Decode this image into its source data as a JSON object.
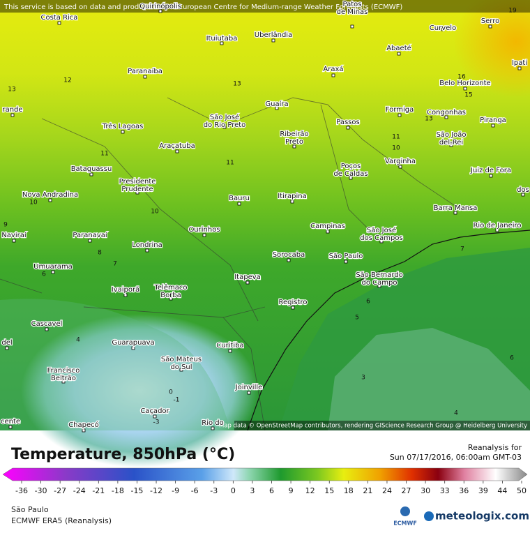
{
  "header": {
    "notice": "This service is based on data and products of the European Centre for Medium-range Weather Forecasts (ECMWF)"
  },
  "map": {
    "cities": [
      [
        "Costa Rica"
      ],
      [
        "Quirinópolis"
      ],
      [
        "Patos",
        "de Minas"
      ],
      [
        "Curvelo"
      ],
      [
        "Serro"
      ],
      [
        "Ituiutaba"
      ],
      [
        "Uberlândia"
      ],
      [
        "Abaeté"
      ],
      [
        "Ipati"
      ],
      [
        "Paranaíba"
      ],
      [
        "Araxá"
      ],
      [
        "Belo Horizonte"
      ],
      [
        "Guaíra"
      ],
      [
        "Formiga"
      ],
      [
        "Congonhas"
      ],
      [
        "Piranga"
      ],
      [
        "rande"
      ],
      [
        "Três Lagoas"
      ],
      [
        "São José",
        "do Rio Preto"
      ],
      [
        "Ribeirão",
        "Preto"
      ],
      [
        "Passos"
      ],
      [
        "São João",
        "del-Rei"
      ],
      [
        "Araçatuba"
      ],
      [
        "Varginha"
      ],
      [
        "Bataguassu"
      ],
      [
        "Poços",
        "de Caldas"
      ],
      [
        "Juiz de Fora"
      ],
      [
        "dos"
      ],
      [
        "Presidente",
        "Prudente"
      ],
      [
        "Nova Andradina"
      ],
      [
        "Bauru"
      ],
      [
        "Itirapina"
      ],
      [
        "Barra Mansa"
      ],
      [
        "Rio de Janeiro"
      ],
      [
        "Naviraí"
      ],
      [
        "Paranavaí"
      ],
      [
        "Ourinhos"
      ],
      [
        "Campinas"
      ],
      [
        "São José",
        "dos Campos"
      ],
      [
        "Londrina"
      ],
      [
        "Sorocaba"
      ],
      [
        "São Paulo"
      ],
      [
        "Umuarama"
      ],
      [
        "São Bernardo",
        "do Campo"
      ],
      [
        "Itapeva"
      ],
      [
        "Ivaiporã"
      ],
      [
        "Telêmaco",
        "Borba"
      ],
      [
        "Registro"
      ],
      [
        "Cascavel"
      ],
      [
        "del"
      ],
      [
        "Guarapuava"
      ],
      [
        "Curitiba"
      ],
      [
        "São Mateus",
        "do Sul"
      ],
      [
        "Francisco",
        "Beltrão"
      ],
      [
        "Joinville"
      ],
      [
        "Caçador"
      ],
      [
        "Chapecó"
      ],
      [
        "cente"
      ],
      [
        "Rio do"
      ]
    ],
    "contour_labels": [
      19,
      13,
      12,
      13,
      16,
      15,
      13,
      11,
      10,
      11,
      11,
      10,
      10,
      9,
      8,
      7,
      6,
      7,
      6,
      5,
      4,
      6,
      3,
      4,
      0,
      -1,
      -3
    ],
    "attribution": "Map data © OpenStreetMap contributors, rendering GIScience Research Group @ Heidelberg University"
  },
  "legend": {
    "title": "Temperature, 850hPa (°C)",
    "run_label": "Reanalysis for",
    "run_time": "Sun 07/17/2016, 06:00am GMT-03",
    "ticks": [
      -36,
      -30,
      -27,
      -24,
      -21,
      -18,
      -15,
      -12,
      -9,
      -6,
      -3,
      0,
      3,
      6,
      9,
      12,
      15,
      18,
      21,
      24,
      27,
      30,
      33,
      36,
      39,
      44,
      50
    ]
  },
  "footer": {
    "region": "São Paulo",
    "model": "ECMWF ERA5 (Reanalysis)",
    "ecmwf_logo": "ECMWF",
    "brand": "meteologix.com"
  }
}
